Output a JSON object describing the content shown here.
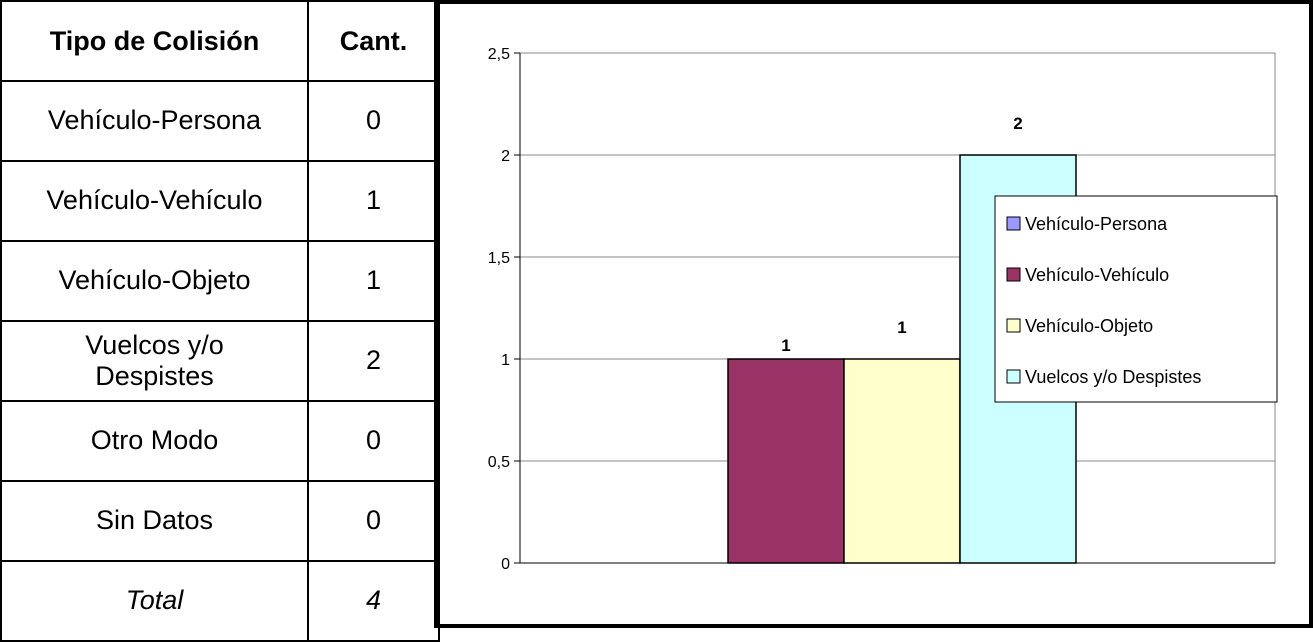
{
  "table": {
    "headers": [
      "Tipo de Colisión",
      "Cant."
    ],
    "rows": [
      {
        "label": "Vehículo-Persona",
        "value": "0"
      },
      {
        "label": "Vehículo-Vehículo",
        "value": "1"
      },
      {
        "label": "Vehículo-Objeto",
        "value": "1"
      },
      {
        "label": "Vuelcos y/o Despistes",
        "value": "2"
      },
      {
        "label": "Otro Modo",
        "value": "0"
      },
      {
        "label": "Sin Datos",
        "value": "0"
      }
    ],
    "total": {
      "label": "Total",
      "value": "4"
    }
  },
  "chart_data": {
    "type": "bar",
    "title": "",
    "xlabel": "",
    "ylabel": "",
    "ylim": [
      0,
      2.5
    ],
    "yticks": [
      "0",
      "0,5",
      "1",
      "1,5",
      "2",
      "2,5"
    ],
    "grid": true,
    "legend_position": "right",
    "series": [
      {
        "name": "Vehículo-Persona",
        "values": [
          0
        ],
        "color": "#9999FF"
      },
      {
        "name": "Vehículo-Vehículo",
        "values": [
          1
        ],
        "color": "#993366",
        "label": "1"
      },
      {
        "name": "Vehículo-Objeto",
        "values": [
          1
        ],
        "color": "#FFFFCC",
        "label": "1"
      },
      {
        "name": "Vuelcos y/o Despistes",
        "values": [
          2
        ],
        "color": "#CCFFFF",
        "label": "2"
      }
    ]
  }
}
